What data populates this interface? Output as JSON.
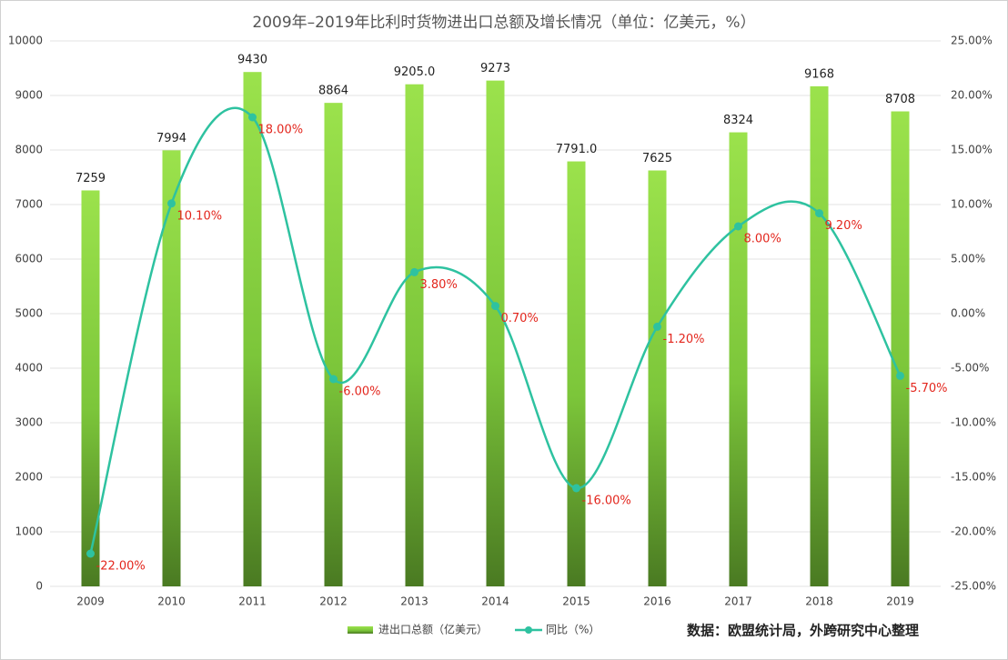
{
  "chart_data": {
    "type": "bar",
    "title": "2009年–2019年比利时货物进出口总额及增长情况（单位：亿美元，%）",
    "categories": [
      "2009",
      "2010",
      "2011",
      "2012",
      "2013",
      "2014",
      "2015",
      "2016",
      "2017",
      "2018",
      "2019"
    ],
    "series": [
      {
        "name": "进出口总额（亿美元）",
        "type": "bar",
        "color": "#7cc63a",
        "values": [
          7259,
          7994,
          9430,
          8864,
          9205.0,
          9273,
          7791.0,
          7625,
          8324,
          9168,
          8708
        ],
        "value_labels": [
          "7259",
          "7994",
          "9430",
          "8864",
          "9205.0",
          "9273",
          "7791.0",
          "7625",
          "8324",
          "9168",
          "8708"
        ]
      },
      {
        "name": "同比（%）",
        "type": "line",
        "axis": "y2",
        "color": "#2ec2a0",
        "values": [
          -22,
          10.1,
          18,
          -6,
          3.8,
          0.7,
          -16,
          -1.2,
          8,
          9.2,
          -5.7
        ],
        "value_labels": [
          "-22.00%",
          "10.10%",
          "18.00%",
          "-6.00%",
          "3.80%",
          "0.70%",
          "-16.00%",
          "-1.20%",
          "8.00%",
          "9.20%",
          "-5.70%"
        ]
      }
    ],
    "ylim": [
      0,
      10000
    ],
    "yticks": [
      0,
      1000,
      2000,
      3000,
      4000,
      5000,
      6000,
      7000,
      8000,
      9000,
      10000
    ],
    "y2lim": [
      -25,
      25
    ],
    "y2ticks": [
      {
        "value": -25,
        "label": "-25.00%"
      },
      {
        "value": -20,
        "label": "-20.00%"
      },
      {
        "value": -15,
        "label": "-15.00%"
      },
      {
        "value": -10,
        "label": "-10.00%"
      },
      {
        "value": -5,
        "label": "-5.00%"
      },
      {
        "value": 0,
        "label": "0.00%"
      },
      {
        "value": 5,
        "label": "5.00%"
      },
      {
        "value": 10,
        "label": "10.00%"
      },
      {
        "value": 15,
        "label": "15.00%"
      },
      {
        "value": 20,
        "label": "20.00%"
      },
      {
        "value": 25,
        "label": "25.00%"
      }
    ],
    "grid": true,
    "legend": "bottom",
    "source": "数据：欧盟统计局，外跨研究中心整理"
  }
}
